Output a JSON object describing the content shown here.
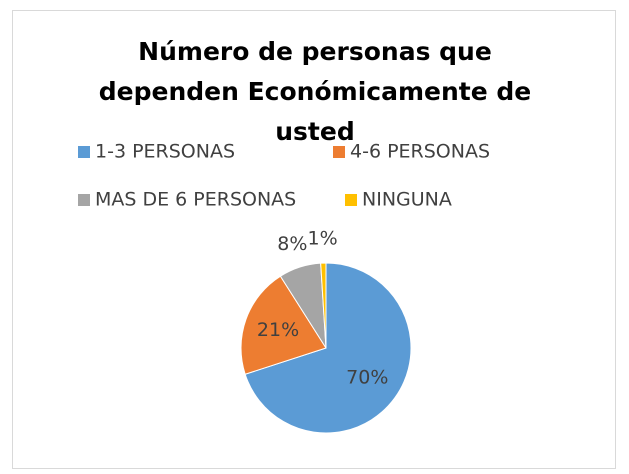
{
  "chart_data": {
    "type": "pie",
    "title": "Número de personas que dependen Económicamente de usted",
    "categories": [
      "1-3 PERSONAS",
      "4-6 PERSONAS",
      "MAS DE 6 PERSONAS",
      "NINGUNA"
    ],
    "values": [
      70,
      21,
      8,
      1
    ],
    "value_labels": [
      "70%",
      "21%",
      "8%",
      "1%"
    ],
    "colors": [
      "#5b9bd5",
      "#ed7d31",
      "#a5a5a5",
      "#ffc000"
    ]
  }
}
